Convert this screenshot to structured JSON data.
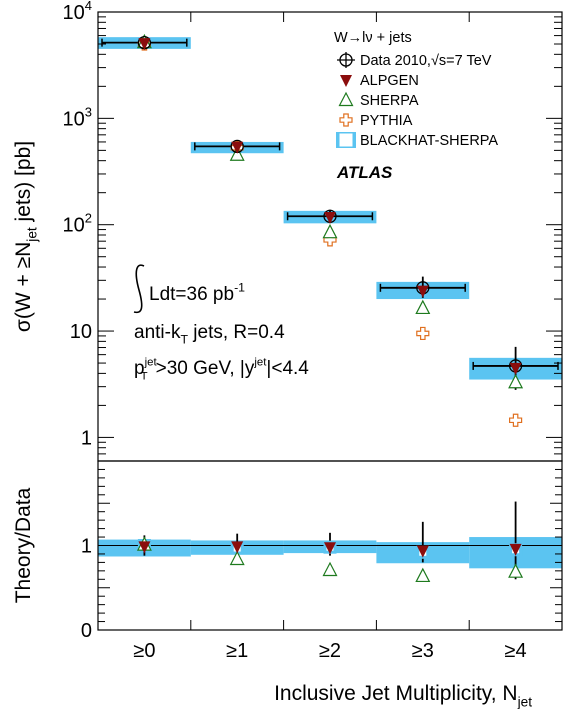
{
  "chart_data": [
    {
      "type": "scatter",
      "ylabel": "σ(W + ≥N",
      "ylabel_sub": "jet",
      "ylabel_tail": " jets) [pb]",
      "yscale": "log",
      "ylim": [
        0.6,
        10000
      ],
      "yticks": [
        {
          "value": 1,
          "label": "1",
          "sup": ""
        },
        {
          "value": 10,
          "label": "10",
          "sup": ""
        },
        {
          "value": 100,
          "label": "10",
          "sup": "2"
        },
        {
          "value": 1000,
          "label": "10",
          "sup": "3"
        },
        {
          "value": 10000,
          "label": "10",
          "sup": "4"
        }
      ],
      "categories": [
        "≥0",
        "≥1",
        "≥2",
        "≥3",
        "≥4"
      ],
      "series": [
        {
          "name": "Data 2010,√s=7 TeV",
          "marker": "open-circle",
          "color": "#000000",
          "values": [
            5150,
            545,
            120,
            25.5,
            4.7
          ],
          "err_low": [
            600,
            70,
            15,
            5,
            1.9
          ],
          "err_high": [
            700,
            80,
            18,
            7,
            2.4
          ]
        },
        {
          "name": "ALPGEN",
          "marker": "filled-triangle-down",
          "color": "#8b0d0d",
          "values": [
            5100,
            540,
            118,
            24,
            4.5
          ]
        },
        {
          "name": "SHERPA",
          "marker": "open-triangle-up",
          "color": "#1e7a1e",
          "values": [
            5200,
            455,
            85,
            16.5,
            3.3
          ]
        },
        {
          "name": "PYTHIA",
          "marker": "open-cross",
          "color": "#e07020",
          "values": [
            5000,
            530,
            72,
            9.5,
            1.45
          ]
        },
        {
          "name": "BLACKHAT-SHERPA",
          "marker": "band",
          "color": "#5bc4f1",
          "values": [
            5100,
            530,
            118,
            24,
            4.5
          ],
          "band_low": [
            4500,
            470,
            103,
            20,
            3.5
          ],
          "band_high": [
            5800,
            600,
            135,
            29,
            5.6
          ]
        }
      ],
      "legend": {
        "title": "W→lν + jets",
        "placement": "top-right"
      },
      "annotations": {
        "experiment": "ATLAS",
        "lumi": "Ldt=36 pb",
        "lumi_sup": "-1",
        "algo": "anti-k",
        "algo_sub": "T",
        "algo_tail": " jets, R=0.4",
        "cuts": [
          {
            "text": "p"
          },
          {
            "sup": "jet",
            "sub": "T"
          },
          {
            "text": ">30 GeV, |y"
          },
          {
            "sup": "jet"
          },
          {
            "text": "|<4.4"
          }
        ]
      }
    },
    {
      "type": "scatter",
      "ylabel": "Theory/Data",
      "ylim": [
        0,
        2
      ],
      "yticks": [
        {
          "value": 0,
          "label": "0"
        },
        {
          "value": 1,
          "label": "1"
        }
      ],
      "categories": [
        "≥0",
        "≥1",
        "≥2",
        "≥3",
        "≥4"
      ],
      "xlabel": "Inclusive Jet Multiplicity, N",
      "xlabel_sub": "jet",
      "reference_line": 1,
      "series": [
        {
          "name": "Data 2010,√s=7 TeV",
          "values": [
            1,
            1,
            1,
            1,
            1
          ],
          "err_low": [
            0.12,
            0.12,
            0.12,
            0.2,
            0.4
          ],
          "err_high": [
            0.12,
            0.14,
            0.15,
            0.28,
            0.52
          ]
        },
        {
          "name": "ALPGEN",
          "values": [
            0.99,
            0.99,
            0.98,
            0.94,
            0.96
          ]
        },
        {
          "name": "SHERPA",
          "values": [
            1.01,
            0.84,
            0.71,
            0.64,
            0.69
          ]
        },
        {
          "name": "BLACKHAT-SHERPA",
          "values": [
            1.0,
            0.97,
            0.98,
            0.92,
            0.95
          ],
          "band_low": [
            0.87,
            0.89,
            0.91,
            0.79,
            0.73
          ],
          "band_high": [
            1.07,
            1.06,
            1.06,
            1.04,
            1.1
          ]
        }
      ]
    }
  ]
}
